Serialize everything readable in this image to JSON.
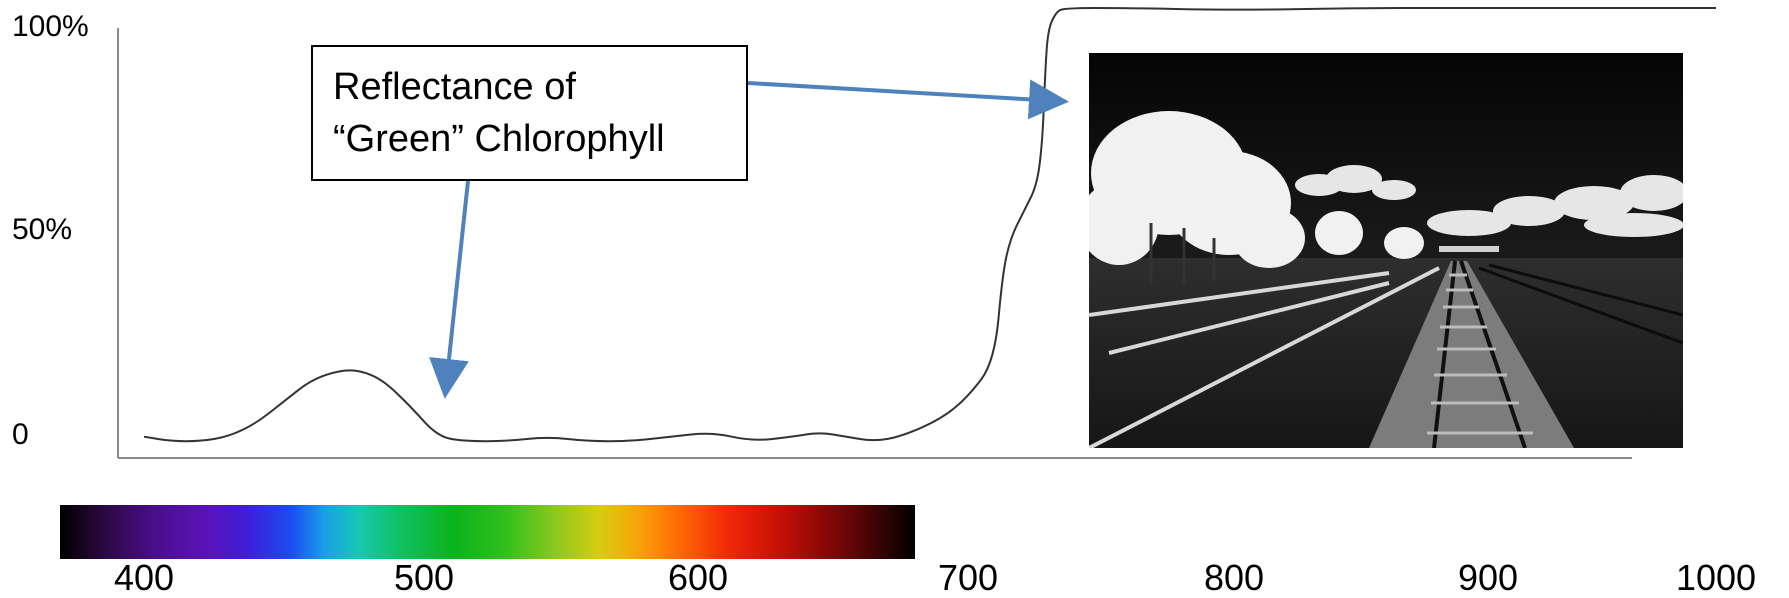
{
  "chart_data": {
    "type": "line",
    "title": "",
    "xlabel": "",
    "ylabel": "",
    "x_ticks": [
      400,
      500,
      600,
      700,
      800,
      900,
      1000
    ],
    "x_tick_labels": [
      "400",
      "500",
      "600",
      "700",
      "800",
      "900",
      "1000"
    ],
    "y_tick_labels": [
      "100%",
      "50%",
      "0"
    ],
    "xlim": [
      345,
      1000
    ],
    "ylim": [
      0,
      100
    ],
    "grid": false,
    "series": [
      {
        "points": [
          [
            400,
            3
          ],
          [
            410,
            2
          ],
          [
            420,
            2
          ],
          [
            430,
            3
          ],
          [
            440,
            6
          ],
          [
            450,
            11
          ],
          [
            460,
            16
          ],
          [
            470,
            18
          ],
          [
            477,
            18
          ],
          [
            485,
            16
          ],
          [
            495,
            10
          ],
          [
            505,
            3
          ],
          [
            515,
            2
          ],
          [
            530,
            2
          ],
          [
            545,
            3
          ],
          [
            560,
            2
          ],
          [
            575,
            2
          ],
          [
            590,
            3
          ],
          [
            605,
            4
          ],
          [
            620,
            2
          ],
          [
            635,
            3
          ],
          [
            645,
            4
          ],
          [
            655,
            3
          ],
          [
            665,
            2
          ],
          [
            675,
            3
          ],
          [
            690,
            7
          ],
          [
            700,
            12
          ],
          [
            710,
            20
          ],
          [
            713,
            40
          ],
          [
            716,
            48
          ],
          [
            721,
            54
          ],
          [
            726,
            60
          ],
          [
            728,
            70
          ],
          [
            729,
            85
          ],
          [
            730,
            95
          ],
          [
            733,
            99
          ],
          [
            736,
            100
          ],
          [
            760,
            100
          ],
          [
            800,
            99.5
          ],
          [
            850,
            100
          ],
          [
            900,
            100
          ],
          [
            950,
            100
          ],
          [
            1000,
            100
          ]
        ]
      }
    ],
    "annotations": [
      {
        "lines": [
          "Reflectance of",
          "“Green” Chlorophyll"
        ],
        "arrows_to": [
          "visible green peak",
          "near-infrared plateau"
        ]
      }
    ],
    "color_bar": {
      "range": [
        345,
        680
      ],
      "colors": [
        "#000000",
        "#5b12b8",
        "#1b4cf0",
        "#17c8b0",
        "#0bb31c",
        "#d6cc10",
        "#ff6f06",
        "#c81006",
        "#000000"
      ]
    },
    "line_color": "#333333",
    "arrow_color": "#4f81bd"
  },
  "inset_image": {
    "description": "black-and-white infrared photograph of railway tracks with bright white trees and clouds"
  }
}
